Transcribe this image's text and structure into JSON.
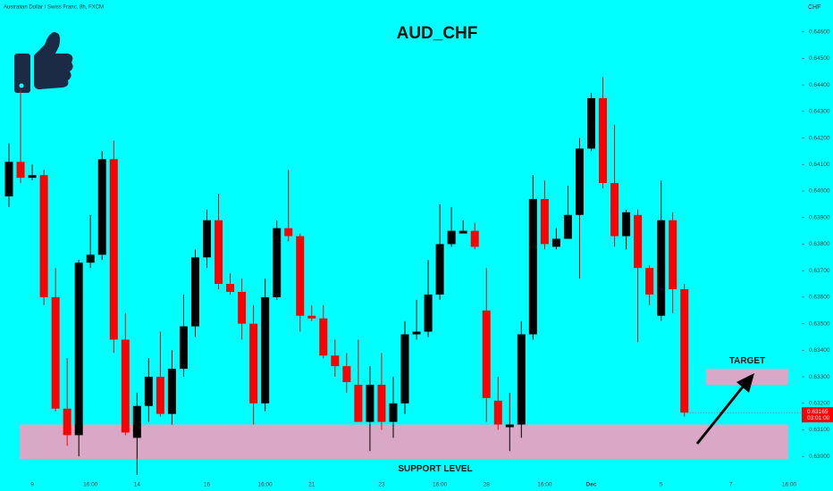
{
  "chart_data": {
    "type": "candlestick",
    "title": "AUD_CHF",
    "subtitle": "Australian Dollar / Swiss Franc, 8h, FXCM",
    "y_label": "CHF",
    "up_color": "#000000",
    "down_color": "#ff0000",
    "zone_color": "#d9a8c6",
    "categories": [
      null,
      null,
      "9",
      null,
      null,
      null,
      null,
      "16:00",
      null,
      null,
      null,
      "14",
      null,
      null,
      null,
      null,
      null,
      "16",
      null,
      null,
      null,
      null,
      "16:00",
      null,
      null,
      null,
      "21",
      null,
      null,
      null,
      null,
      null,
      "23",
      null,
      null,
      null,
      null,
      "16:00",
      null,
      null,
      null,
      "28",
      null,
      null,
      null,
      null,
      "16:00",
      null,
      null,
      null,
      "Dec",
      null,
      null,
      null,
      null,
      null,
      "5",
      null,
      null,
      null,
      null,
      null,
      "7",
      null,
      null,
      null,
      null,
      "16:00"
    ],
    "open": [
      0.6398,
      0.6411,
      0.6405,
      0.6406,
      0.636,
      0.6318,
      0.6308,
      0.6373,
      0.6376,
      0.6412,
      0.6344,
      0.6307,
      0.6319,
      0.633,
      0.6316,
      0.6333,
      0.6349,
      0.6375,
      0.6389,
      0.6365,
      0.6362,
      0.635,
      0.632,
      0.636,
      0.6386,
      0.6383,
      0.6353,
      0.6352,
      0.6338,
      0.6334,
      0.6327,
      0.6313,
      0.6327,
      0.6313,
      0.632,
      0.6346,
      0.6347,
      0.6361,
      0.638,
      0.6384,
      0.6385,
      0.6355,
      0.6321,
      0.6311,
      0.6312,
      0.6346,
      0.6397,
      0.6379,
      0.6382,
      0.6391,
      0.6416,
      0.6435,
      0.6403,
      0.6383,
      0.6391,
      0.6371,
      0.6353,
      0.6389,
      0.6363,
      null,
      null,
      null,
      null,
      null,
      null,
      null,
      null,
      null
    ],
    "high": [
      0.6418,
      0.6438,
      0.641,
      0.6408,
      0.6371,
      0.6337,
      0.6374,
      0.6391,
      0.6415,
      0.6419,
      0.6354,
      0.6324,
      0.6337,
      0.6347,
      0.634,
      0.6361,
      0.6378,
      0.6393,
      0.6399,
      0.6369,
      0.6367,
      0.6357,
      0.6367,
      0.6389,
      0.6408,
      0.6384,
      0.6357,
      0.6357,
      0.6344,
      0.6339,
      0.6344,
      0.6334,
      0.6339,
      0.633,
      0.6351,
      0.6359,
      0.6374,
      0.6395,
      0.6394,
      0.6389,
      0.6388,
      0.6371,
      0.633,
      0.6324,
      0.6351,
      0.6406,
      0.6404,
      0.6386,
      0.6402,
      0.642,
      0.6437,
      0.6443,
      0.6425,
      0.6393,
      0.6393,
      0.6372,
      0.6404,
      0.6392,
      0.6365,
      null,
      null,
      null,
      null,
      null,
      null,
      null,
      null,
      null
    ],
    "low": [
      0.6394,
      0.6403,
      0.6404,
      0.6357,
      0.6317,
      0.6304,
      0.63,
      0.6371,
      0.6374,
      0.6339,
      0.6308,
      0.6293,
      0.6313,
      0.6315,
      0.6312,
      0.633,
      0.6345,
      0.6371,
      0.6363,
      0.6361,
      0.6344,
      0.6312,
      0.6317,
      0.6359,
      0.6381,
      0.6347,
      0.6351,
      0.6337,
      0.633,
      0.6324,
      0.6313,
      0.6302,
      0.631,
      0.6307,
      0.6316,
      0.6344,
      0.6345,
      0.6359,
      0.6379,
      0.6384,
      0.6378,
      0.6313,
      0.631,
      0.6302,
      0.6307,
      0.6344,
      0.6378,
      0.6378,
      0.6382,
      0.6367,
      0.6415,
      0.6401,
      0.6379,
      0.6378,
      0.6343,
      0.6357,
      0.6351,
      0.6354,
      0.6315,
      null,
      null,
      null,
      null,
      null,
      null,
      null,
      null,
      null
    ],
    "close": [
      0.6411,
      0.6405,
      0.6406,
      0.636,
      0.6318,
      0.6308,
      0.6373,
      0.6376,
      0.6412,
      0.6344,
      0.6309,
      0.6319,
      0.633,
      0.6316,
      0.6333,
      0.6349,
      0.6375,
      0.6389,
      0.6365,
      0.6362,
      0.635,
      0.632,
      0.636,
      0.6386,
      0.6383,
      0.6353,
      0.6352,
      0.6338,
      0.6334,
      0.6328,
      0.6313,
      0.6327,
      0.6313,
      0.632,
      0.6346,
      0.6347,
      0.6361,
      0.638,
      0.6385,
      0.6385,
      0.6379,
      0.6322,
      0.6312,
      0.6312,
      0.6346,
      0.6397,
      0.638,
      0.6382,
      0.6391,
      0.6416,
      0.6435,
      0.6403,
      0.6383,
      0.6392,
      0.6371,
      0.6361,
      0.6389,
      0.6363,
      0.63165,
      null,
      null,
      null,
      null,
      null,
      null,
      null,
      null,
      null
    ],
    "ylim": [
      0.6292,
      0.6472
    ],
    "yticks": [
      {
        "value": 0.63,
        "label": "0.63000"
      },
      {
        "value": 0.631,
        "label": "0.63100"
      },
      {
        "value": 0.632,
        "label": "0.63200"
      },
      {
        "value": 0.633,
        "label": "0.63300"
      },
      {
        "value": 0.634,
        "label": "0.63400"
      },
      {
        "value": 0.635,
        "label": "0.63500"
      },
      {
        "value": 0.636,
        "label": "0.63600"
      },
      {
        "value": 0.637,
        "label": "0.63700"
      },
      {
        "value": 0.638,
        "label": "0.63800"
      },
      {
        "value": 0.639,
        "label": "0.63900"
      },
      {
        "value": 0.64,
        "label": "0.64000"
      },
      {
        "value": 0.641,
        "label": "0.64100"
      },
      {
        "value": 0.642,
        "label": "0.64200"
      },
      {
        "value": 0.643,
        "label": "0.64300"
      },
      {
        "value": 0.644,
        "label": "0.64400"
      },
      {
        "value": 0.645,
        "label": "0.64500"
      },
      {
        "value": 0.646,
        "label": "0.64600"
      }
    ],
    "zones": [
      {
        "label": "SUPPORT LEVEL",
        "range": [
          0.6299,
          0.6312
        ]
      },
      {
        "label": "TARGET",
        "range": [
          0.6327,
          0.6333
        ]
      }
    ],
    "last_price": {
      "value": 0.63165,
      "label": "0.63165"
    },
    "countdown": "03:01:00"
  }
}
